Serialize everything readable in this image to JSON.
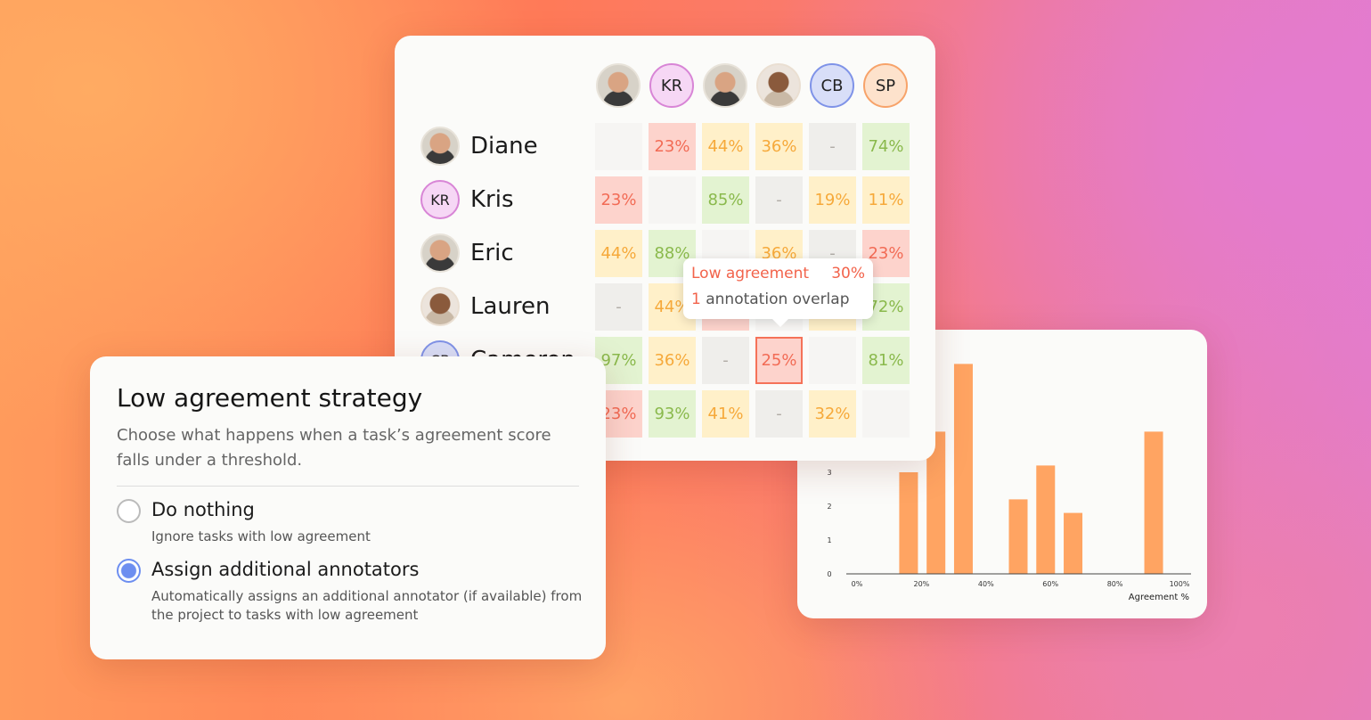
{
  "matrix": {
    "columns": [
      {
        "initials": "",
        "type": "photo"
      },
      {
        "initials": "KR",
        "type": "kr"
      },
      {
        "initials": "",
        "type": "photo"
      },
      {
        "initials": "",
        "type": "dark"
      },
      {
        "initials": "CB",
        "type": "cb"
      },
      {
        "initials": "SP",
        "type": "sp"
      }
    ],
    "rows": [
      {
        "name": "Diane",
        "initials": "",
        "type": "photo",
        "cells": [
          [
            "",
            "emp"
          ],
          [
            "23%",
            "red"
          ],
          [
            "44%",
            "yel"
          ],
          [
            "36%",
            "yel"
          ],
          [
            "-",
            "gry"
          ],
          [
            "74%",
            "grn"
          ]
        ]
      },
      {
        "name": "Kris",
        "initials": "KR",
        "type": "kr",
        "cells": [
          [
            "23%",
            "red"
          ],
          [
            "",
            "emp"
          ],
          [
            "85%",
            "grn"
          ],
          [
            "-",
            "gry"
          ],
          [
            "19%",
            "yel"
          ],
          [
            "11%",
            "yel"
          ]
        ]
      },
      {
        "name": "Eric",
        "initials": "",
        "type": "photo",
        "cells": [
          [
            "44%",
            "yel"
          ],
          [
            "88%",
            "grn"
          ],
          [
            "",
            "emp"
          ],
          [
            "36%",
            "yel"
          ],
          [
            "-",
            "gry"
          ],
          [
            "23%",
            "red"
          ]
        ]
      },
      {
        "name": "Lauren",
        "initials": "",
        "type": "dark",
        "cells": [
          [
            "-",
            "gry"
          ],
          [
            "44%",
            "yel"
          ],
          [
            "",
            "red"
          ],
          [
            "",
            "emp"
          ],
          [
            "",
            "yel"
          ],
          [
            "72%",
            "grn"
          ]
        ]
      },
      {
        "name": "Cameron",
        "initials": "CB",
        "type": "cb",
        "cells": [
          [
            "97%",
            "grn"
          ],
          [
            "36%",
            "yel"
          ],
          [
            "-",
            "gry"
          ],
          [
            "25%",
            "red"
          ],
          [
            "",
            "emp"
          ],
          [
            "81%",
            "grn"
          ]
        ]
      },
      {
        "name": "",
        "initials": "SP",
        "type": "sp",
        "cells": [
          [
            "23%",
            "red"
          ],
          [
            "93%",
            "grn"
          ],
          [
            "41%",
            "yel"
          ],
          [
            "-",
            "gry"
          ],
          [
            "32%",
            "yel"
          ],
          [
            "",
            "emp"
          ]
        ]
      }
    ],
    "selected_cell": {
      "row": 4,
      "col": 3
    }
  },
  "tooltip": {
    "title": "Low agreement",
    "value": "30%",
    "count": "1",
    "count_label": "annotation overlap"
  },
  "dialog": {
    "title": "Low agreement strategy",
    "description": "Choose what happens when a task’s agreement score falls under a threshold.",
    "options": [
      {
        "label": "Do nothing",
        "sub": "Ignore tasks with low agreement",
        "selected": false
      },
      {
        "label": "Assign additional annotators",
        "sub": "Automatically assigns an additional annotator (if available) from the project to tasks with low agreement",
        "selected": true
      }
    ]
  },
  "chart_data": {
    "type": "bar",
    "xlabel": "Agreement %",
    "ylabel": "",
    "x_ticks": [
      "0%",
      "20%",
      "40%",
      "60%",
      "80%",
      "100%"
    ],
    "y_ticks": [
      "0",
      "1",
      "2",
      "3"
    ],
    "xlim": [
      0,
      100
    ],
    "ylim": [
      0,
      6.5
    ],
    "bars": [
      {
        "x": 16,
        "value": 3
      },
      {
        "x": 24.5,
        "value": 4.2
      },
      {
        "x": 33,
        "value": 6.2
      },
      {
        "x": 50,
        "value": 2.2
      },
      {
        "x": 58.5,
        "value": 3.2
      },
      {
        "x": 67,
        "value": 1.8
      },
      {
        "x": 92,
        "value": 4.2
      }
    ],
    "bar_color": "#ffa462",
    "grid": false
  }
}
